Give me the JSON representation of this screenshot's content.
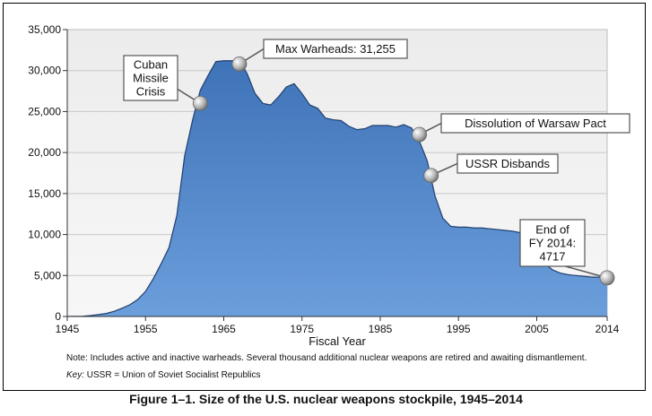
{
  "chart_data": {
    "type": "area",
    "xlabel": "Fiscal Year",
    "ylabel": "",
    "xlim": [
      1945,
      2014
    ],
    "ylim": [
      0,
      35000
    ],
    "x_ticks": [
      1945,
      1955,
      1965,
      1975,
      1985,
      1995,
      2005,
      2014
    ],
    "x_tick_labels": [
      "1945",
      "1955",
      "1965",
      "1975",
      "1985",
      "1995",
      "2005",
      "2014"
    ],
    "y_ticks": [
      0,
      5000,
      10000,
      15000,
      20000,
      25000,
      30000,
      35000
    ],
    "y_tick_labels": [
      "0",
      "5,000",
      "10,000",
      "15,000",
      "20,000",
      "25,000",
      "30,000",
      "35,000"
    ],
    "grid": true,
    "fill_color": "#5b8fcf",
    "line_color": "#1f3f6e",
    "series": [
      {
        "x": [
          1945,
          1946,
          1947,
          1948,
          1949,
          1950,
          1951,
          1952,
          1953,
          1954,
          1955,
          1956,
          1957,
          1958,
          1959,
          1960,
          1961,
          1962,
          1963,
          1964,
          1965,
          1966,
          1967,
          1968,
          1969,
          1970,
          1971,
          1972,
          1973,
          1974,
          1975,
          1976,
          1977,
          1978,
          1979,
          1980,
          1981,
          1982,
          1983,
          1984,
          1985,
          1986,
          1987,
          1988,
          1989,
          1990,
          1991,
          1992,
          1993,
          1994,
          1995,
          1996,
          1997,
          1998,
          1999,
          2000,
          2001,
          2002,
          2003,
          2004,
          2005,
          2006,
          2007,
          2008,
          2009,
          2010,
          2011,
          2012,
          2013,
          2014
        ],
        "y": [
          6,
          11,
          32,
          110,
          235,
          369,
          640,
          1005,
          1436,
          2063,
          3057,
          4618,
          6444,
          8400,
          12300,
          19600,
          23900,
          27600,
          29400,
          31100,
          31200,
          31200,
          31255,
          29600,
          27200,
          26000,
          25800,
          26800,
          28000,
          28400,
          27200,
          25800,
          25400,
          24200,
          24000,
          23900,
          23200,
          22800,
          22900,
          23300,
          23300,
          23300,
          23100,
          23400,
          23000,
          21400,
          19000,
          14700,
          12000,
          11000,
          10900,
          10900,
          10800,
          10800,
          10700,
          10600,
          10500,
          10400,
          10200,
          9700,
          8400,
          6500,
          5700,
          5300,
          5100,
          5000,
          4900,
          4800,
          4800,
          4717
        ]
      }
    ],
    "annotations": [
      {
        "lines": [
          "Cuban",
          "Missile",
          "Crisis"
        ],
        "x": 1962,
        "y": 26000
      },
      {
        "lines": [
          "Max Warheads: 31,255"
        ],
        "x": 1967,
        "y": 30800
      },
      {
        "lines": [
          "Dissolution of Warsaw Pact"
        ],
        "x": 1990,
        "y": 22200
      },
      {
        "lines": [
          "USSR Disbands"
        ],
        "x": 1991.5,
        "y": 17200
      },
      {
        "lines": [
          "End of",
          "FY 2014:",
          "4717"
        ],
        "x": 2014,
        "y": 4717
      }
    ]
  },
  "note": "Note: Includes active and inactive warheads. Several thousand additional nuclear weapons are retired and awaiting dismantlement.",
  "key_label": "Key:",
  "key_text": " USSR = Union of Soviet Socialist Republics",
  "figure_caption": "Figure 1–1.  Size of the U.S. nuclear weapons stockpile, 1945–2014"
}
